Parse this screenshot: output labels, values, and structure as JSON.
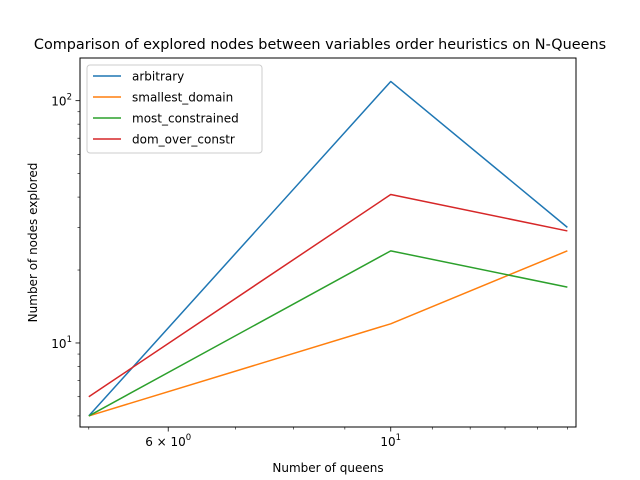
{
  "chart_data": {
    "type": "line",
    "title": "Comparison of explored nodes between variables order heuristics on N-Queens",
    "xlabel": "Number of queens",
    "ylabel": "Number of nodes explored",
    "xscale": "log",
    "yscale": "log",
    "xlim": [
      4.9,
      15.3
    ],
    "ylim": [
      4.5,
      150
    ],
    "x": [
      5,
      10,
      15
    ],
    "x_tick_labels": [
      "6 × 10^0",
      "10^1"
    ],
    "y_tick_labels": [
      "10^1",
      "10^2"
    ],
    "legend_position": "upper-left",
    "grid": false,
    "series": [
      {
        "name": "arbitrary",
        "color": "#1f77b4",
        "values": [
          5,
          120,
          30
        ]
      },
      {
        "name": "smallest_domain",
        "color": "#ff7f0e",
        "values": [
          5,
          12,
          24
        ]
      },
      {
        "name": "most_constrained",
        "color": "#2ca02c",
        "values": [
          5,
          24,
          17
        ]
      },
      {
        "name": "dom_over_constr",
        "color": "#d62728",
        "values": [
          6,
          41,
          29
        ]
      }
    ]
  }
}
